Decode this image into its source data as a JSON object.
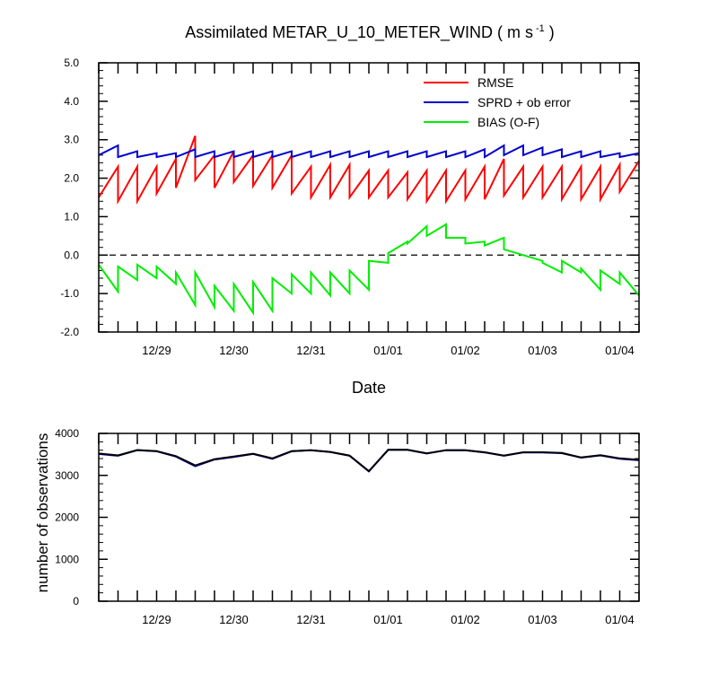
{
  "chart_data": [
    {
      "type": "line",
      "title": "Assimilated METAR_U_10_METER_WIND ( m s",
      "title_sup": "-1",
      "title_end": " )",
      "xlabel": "Date",
      "ylabel": "",
      "ylim": [
        -2.0,
        5.0
      ],
      "yticks": [
        "-2.0",
        "-1.0",
        "0.0",
        "1.0",
        "2.0",
        "3.0",
        "4.0",
        "5.0"
      ],
      "xticks": [
        "12/29",
        "12/30",
        "12/31",
        "01/01",
        "01/02",
        "01/03",
        "01/04"
      ],
      "xlim_days": [
        -0.75,
        6.25
      ],
      "reference_line": 0.0,
      "legend_position": "top-right",
      "grid": false,
      "series": [
        {
          "name": "RMSE",
          "color": "#ff0000",
          "x": [
            -0.75,
            -0.5,
            -0.5,
            -0.25,
            -0.25,
            0,
            0,
            0.25,
            0.25,
            0.5,
            0.5,
            0.75,
            0.75,
            1,
            1,
            1.25,
            1.25,
            1.5,
            1.5,
            1.75,
            1.75,
            2,
            2,
            2.25,
            2.25,
            2.5,
            2.5,
            2.75,
            2.75,
            3,
            3,
            3.25,
            3.25,
            3.5,
            3.5,
            3.75,
            3.75,
            4,
            4,
            4.25,
            4.25,
            4.5,
            4.5,
            4.75,
            4.75,
            5,
            5,
            5.25,
            5.25,
            5.5,
            5.5,
            5.75,
            5.75,
            6,
            6,
            6.25
          ],
          "y": [
            1.5,
            2.3,
            1.4,
            2.3,
            1.4,
            2.3,
            1.6,
            2.5,
            1.75,
            3.1,
            1.95,
            2.6,
            1.75,
            2.7,
            1.9,
            2.6,
            1.8,
            2.6,
            1.75,
            2.6,
            1.6,
            2.3,
            1.5,
            2.35,
            1.5,
            2.35,
            1.5,
            2.2,
            1.5,
            2.2,
            1.5,
            2.15,
            1.45,
            2.2,
            1.4,
            2.2,
            1.4,
            2.2,
            1.45,
            2.3,
            1.45,
            2.5,
            1.55,
            2.3,
            1.5,
            2.3,
            1.5,
            2.3,
            1.45,
            2.3,
            1.45,
            2.3,
            1.45,
            2.35,
            1.65,
            2.45
          ]
        },
        {
          "name": "SPRD + ob error",
          "color": "#0000cc",
          "x": [
            -0.75,
            -0.5,
            -0.5,
            -0.25,
            -0.25,
            0,
            0,
            0.25,
            0.25,
            0.5,
            0.5,
            0.75,
            0.75,
            1,
            1,
            1.25,
            1.25,
            1.5,
            1.5,
            1.75,
            1.75,
            2,
            2,
            2.25,
            2.25,
            2.5,
            2.5,
            2.75,
            2.75,
            3,
            3,
            3.25,
            3.25,
            3.5,
            3.5,
            3.75,
            3.75,
            4,
            4,
            4.25,
            4.25,
            4.5,
            4.5,
            4.75,
            4.75,
            5,
            5,
            5.25,
            5.25,
            5.5,
            5.5,
            5.75,
            5.75,
            6,
            6,
            6.25
          ],
          "y": [
            2.6,
            2.85,
            2.55,
            2.7,
            2.55,
            2.65,
            2.55,
            2.65,
            2.55,
            2.75,
            2.55,
            2.7,
            2.55,
            2.7,
            2.55,
            2.7,
            2.55,
            2.7,
            2.55,
            2.7,
            2.55,
            2.7,
            2.55,
            2.7,
            2.55,
            2.7,
            2.55,
            2.7,
            2.55,
            2.7,
            2.55,
            2.7,
            2.55,
            2.7,
            2.55,
            2.7,
            2.55,
            2.7,
            2.55,
            2.75,
            2.55,
            2.85,
            2.6,
            2.85,
            2.6,
            2.8,
            2.6,
            2.75,
            2.55,
            2.7,
            2.55,
            2.7,
            2.55,
            2.65,
            2.55,
            2.65
          ]
        },
        {
          "name": "BIAS (O-F)",
          "color": "#00ee00",
          "x": [
            -0.75,
            -0.5,
            -0.5,
            -0.25,
            -0.25,
            0,
            0,
            0.25,
            0.25,
            0.5,
            0.5,
            0.75,
            0.75,
            1,
            1,
            1.25,
            1.25,
            1.5,
            1.5,
            1.75,
            1.75,
            2,
            2,
            2.25,
            2.25,
            2.5,
            2.5,
            2.75,
            2.75,
            3,
            3,
            3.25,
            3.25,
            3.5,
            3.5,
            3.75,
            3.75,
            4,
            4,
            4.25,
            4.25,
            4.5,
            4.5,
            4.75,
            4.75,
            5,
            5,
            5.25,
            5.25,
            5.5,
            5.5,
            5.75,
            5.75,
            6,
            6,
            6.25
          ],
          "y": [
            -0.25,
            -0.95,
            -0.3,
            -0.65,
            -0.25,
            -0.6,
            -0.3,
            -0.75,
            -0.45,
            -1.3,
            -0.45,
            -1.35,
            -0.8,
            -1.45,
            -0.75,
            -1.5,
            -0.7,
            -1.45,
            -0.6,
            -1.0,
            -0.5,
            -1.0,
            -0.45,
            -1.05,
            -0.45,
            -1.0,
            -0.4,
            -0.9,
            -0.15,
            -0.2,
            0.05,
            0.35,
            0.3,
            0.75,
            0.5,
            0.8,
            0.45,
            0.45,
            0.3,
            0.35,
            0.25,
            0.45,
            0.15,
            0.0,
            0.0,
            -0.15,
            -0.2,
            -0.45,
            -0.15,
            -0.45,
            -0.35,
            -0.9,
            -0.4,
            -0.75,
            -0.45,
            -1.05
          ]
        }
      ]
    },
    {
      "type": "line",
      "title": "",
      "xlabel": "",
      "ylabel": "number of observations",
      "ylim": [
        0,
        4500
      ],
      "yticks": [
        "0",
        "1000",
        "2000",
        "3000",
        "4000"
      ],
      "xticks": [
        "12/29",
        "12/30",
        "12/31",
        "01/01",
        "01/02",
        "01/03",
        "01/04"
      ],
      "xlim_days": [
        -0.75,
        6.25
      ],
      "grid": false,
      "series": [
        {
          "name": "",
          "color": "#0000cc",
          "x": [
            -0.75,
            -0.5,
            -0.25,
            0,
            0.25,
            0.5,
            0.75,
            1,
            1.25,
            1.5,
            1.75,
            2,
            2.25,
            2.5,
            2.75,
            3,
            3.25,
            3.5,
            3.75,
            4,
            4.25,
            4.5,
            4.75,
            5,
            5.25,
            5.5,
            5.75,
            6,
            6.25
          ],
          "y": [
            3950,
            3900,
            4050,
            4020,
            3880,
            3620,
            3800,
            3870,
            3950,
            3820,
            4020,
            4050,
            4000,
            3900,
            3480,
            4060,
            4060,
            3960,
            4050,
            4050,
            3990,
            3900,
            3990,
            3990,
            3970,
            3850,
            3910,
            3820,
            3780
          ]
        },
        {
          "name": "",
          "color": "#000000",
          "x": [
            -0.75,
            -0.5,
            -0.25,
            0,
            0.25,
            0.5,
            0.75,
            1,
            1.25,
            1.5,
            1.75,
            2,
            2.25,
            2.5,
            2.75,
            3,
            3.25,
            3.5,
            3.75,
            4,
            4.25,
            4.5,
            4.75,
            5,
            5.25,
            5.5,
            5.75,
            6,
            6.25
          ],
          "y": [
            3960,
            3910,
            4055,
            4025,
            3890,
            3640,
            3810,
            3880,
            3955,
            3830,
            4025,
            4050,
            4005,
            3905,
            3490,
            4060,
            4060,
            3965,
            4050,
            4050,
            3995,
            3905,
            3995,
            3995,
            3975,
            3855,
            3915,
            3830,
            3790
          ]
        }
      ]
    }
  ]
}
